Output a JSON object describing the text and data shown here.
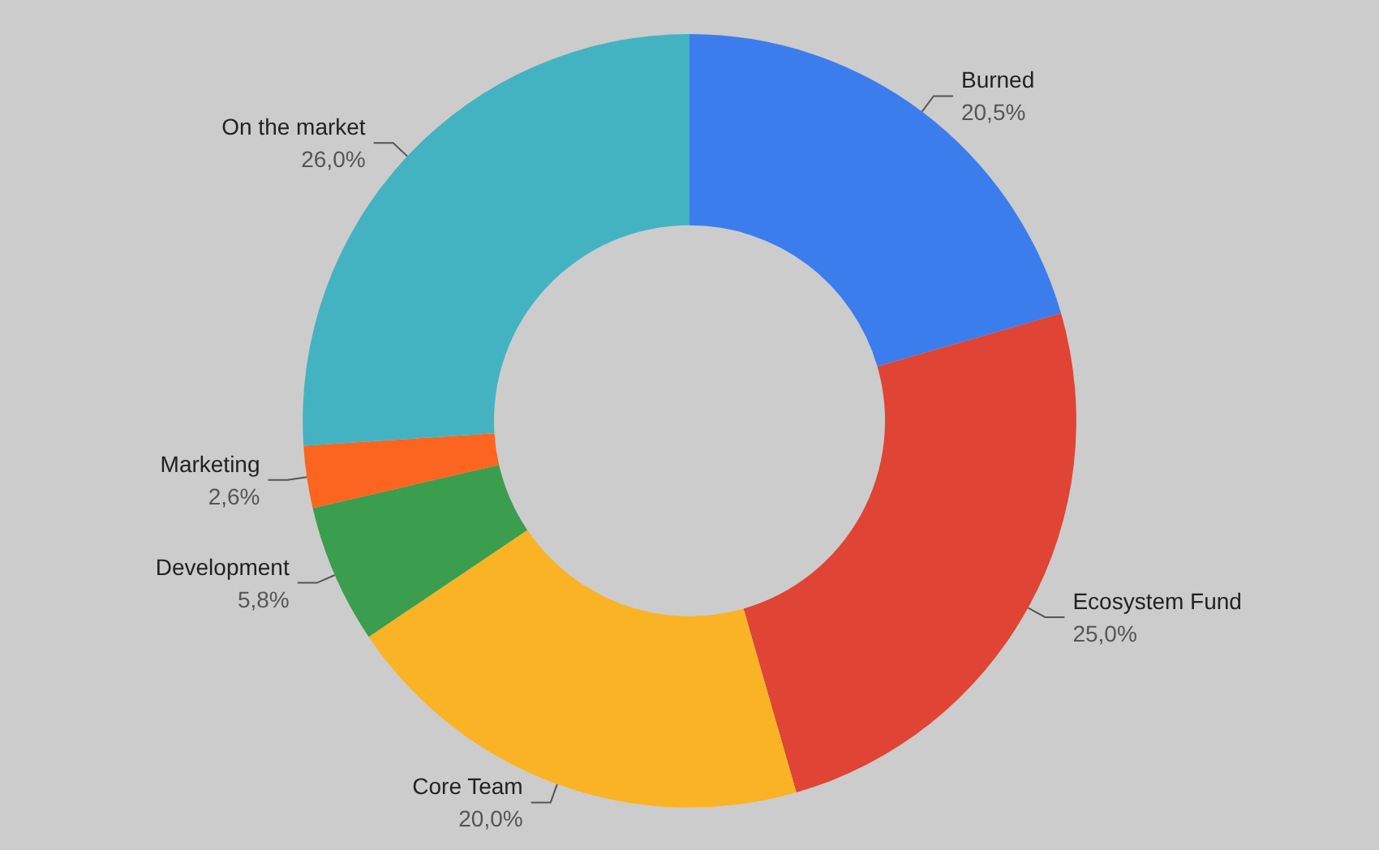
{
  "chart_data": {
    "type": "donut",
    "categories": [
      "Burned",
      "Ecosystem Fund",
      "Core Team",
      "Development",
      "Marketing",
      "On the market"
    ],
    "values": [
      20.5,
      25.0,
      20.0,
      5.8,
      2.6,
      26.0
    ],
    "colors": [
      "#3b7ded",
      "#e04434",
      "#f9b324",
      "#3a9e4e",
      "#fb6520",
      "#44b3c1"
    ],
    "value_labels": [
      "20,5%",
      "25,0%",
      "20,0%",
      "5,8%",
      "2,6%",
      "26,0%"
    ],
    "legend": false
  }
}
